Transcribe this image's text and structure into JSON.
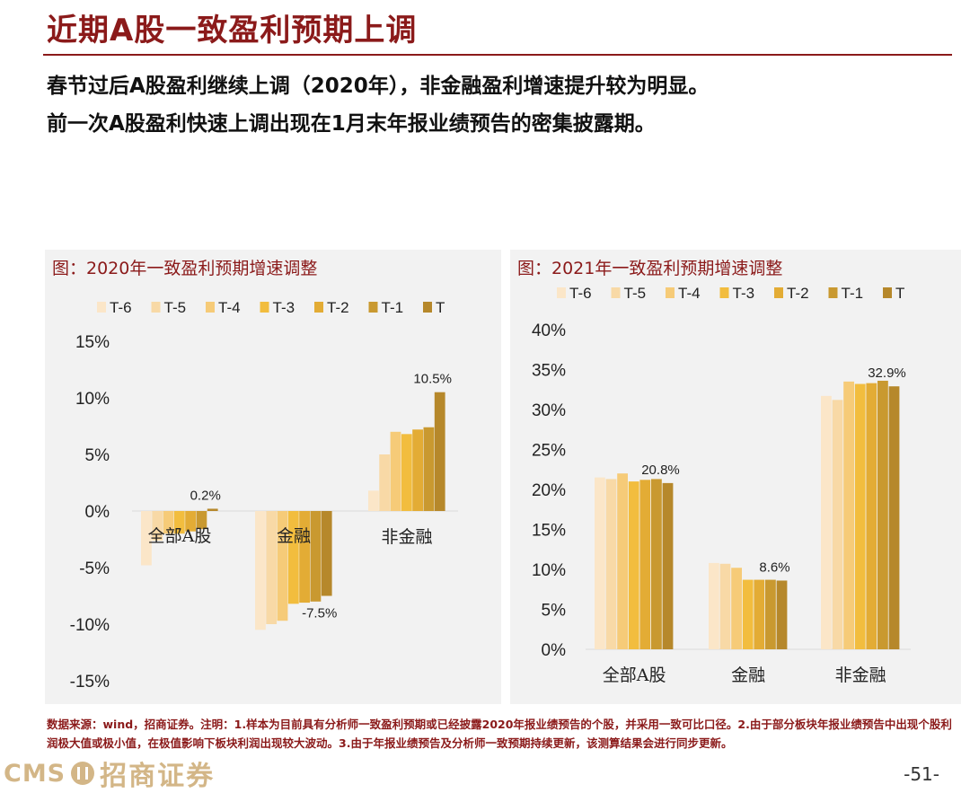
{
  "page": {
    "title": "近期A股一致盈利预期上调",
    "headline_1": "春节过后A股盈利继续上调（2020年），非金融盈利增速提升较为明显。",
    "headline_2": "前一次A股盈利快速上调出现在1月末年报业绩预告的密集披露期。",
    "footnote": "数据来源：wind，招商证券。注明：1.样本为目前具有分析师一致盈利预期或已经披露2020年报业绩预告的个股，并采用一致可比口径。2.由于部分板块年报业绩预告中出现个股利润极大值或极小值，在极值影响下板块利润出现较大波动。3.由于年报业绩预告及分析师一致预期持续更新，该测算结果会进行同步更新。",
    "page_number": "-51-",
    "logo_text_en": "CMS",
    "logo_text_cn": "招商证券"
  },
  "colors": [
    "#fbe6c8",
    "#f8d9a6",
    "#f6cb78",
    "#f2bd3e",
    "#e3ac35",
    "#c99930",
    "#b6882b"
  ],
  "chart_data": [
    {
      "type": "bar",
      "title": "图：2020年一致盈利预期增速调整",
      "categories": [
        "全部A股",
        "金融",
        "非金融"
      ],
      "legend": [
        "T-6",
        "T-5",
        "T-4",
        "T-3",
        "T-2",
        "T-1",
        "T"
      ],
      "legend_position": "top",
      "ylim": [
        -15,
        15
      ],
      "yticks": [
        15,
        10,
        5,
        0,
        -5,
        -10,
        -15
      ],
      "ytick_labels": [
        "15%",
        "10%",
        "5%",
        "0%",
        "-5%",
        "-10%",
        "-15%"
      ],
      "series": [
        {
          "name": "T-6",
          "values": [
            -4.8,
            -10.5,
            1.8
          ]
        },
        {
          "name": "T-5",
          "values": [
            -2.6,
            -10.0,
            5.0
          ]
        },
        {
          "name": "T-4",
          "values": [
            -2.0,
            -9.7,
            7.0
          ]
        },
        {
          "name": "T-3",
          "values": [
            -2.0,
            -8.2,
            6.8
          ]
        },
        {
          "name": "T-2",
          "values": [
            -1.8,
            -8.1,
            7.2
          ]
        },
        {
          "name": "T-1",
          "values": [
            -1.6,
            -8.0,
            7.4
          ]
        },
        {
          "name": "T",
          "values": [
            0.2,
            -7.5,
            10.5
          ]
        }
      ],
      "data_labels": [
        "0.2%",
        "-7.5%",
        "10.5%"
      ]
    },
    {
      "type": "bar",
      "title": "图：2021年一致盈利预期增速调整",
      "categories": [
        "全部A股",
        "金融",
        "非金融"
      ],
      "legend": [
        "T-6",
        "T-5",
        "T-4",
        "T-3",
        "T-2",
        "T-1",
        "T"
      ],
      "legend_position": "top",
      "ylim": [
        0,
        40
      ],
      "yticks": [
        40,
        35,
        30,
        25,
        20,
        15,
        10,
        5,
        0
      ],
      "ytick_labels": [
        "40%",
        "35%",
        "30%",
        "25%",
        "20%",
        "15%",
        "10%",
        "5%",
        "0%"
      ],
      "series": [
        {
          "name": "T-6",
          "values": [
            21.5,
            10.8,
            31.7
          ]
        },
        {
          "name": "T-5",
          "values": [
            21.3,
            10.7,
            31.2
          ]
        },
        {
          "name": "T-4",
          "values": [
            22.0,
            10.2,
            33.5
          ]
        },
        {
          "name": "T-3",
          "values": [
            21.0,
            8.7,
            33.2
          ]
        },
        {
          "name": "T-2",
          "values": [
            21.2,
            8.7,
            33.3
          ]
        },
        {
          "name": "T-1",
          "values": [
            21.3,
            8.7,
            33.6
          ]
        },
        {
          "name": "T",
          "values": [
            20.8,
            8.6,
            32.9
          ]
        }
      ],
      "data_labels": [
        "20.8%",
        "8.6%",
        "32.9%"
      ]
    }
  ]
}
